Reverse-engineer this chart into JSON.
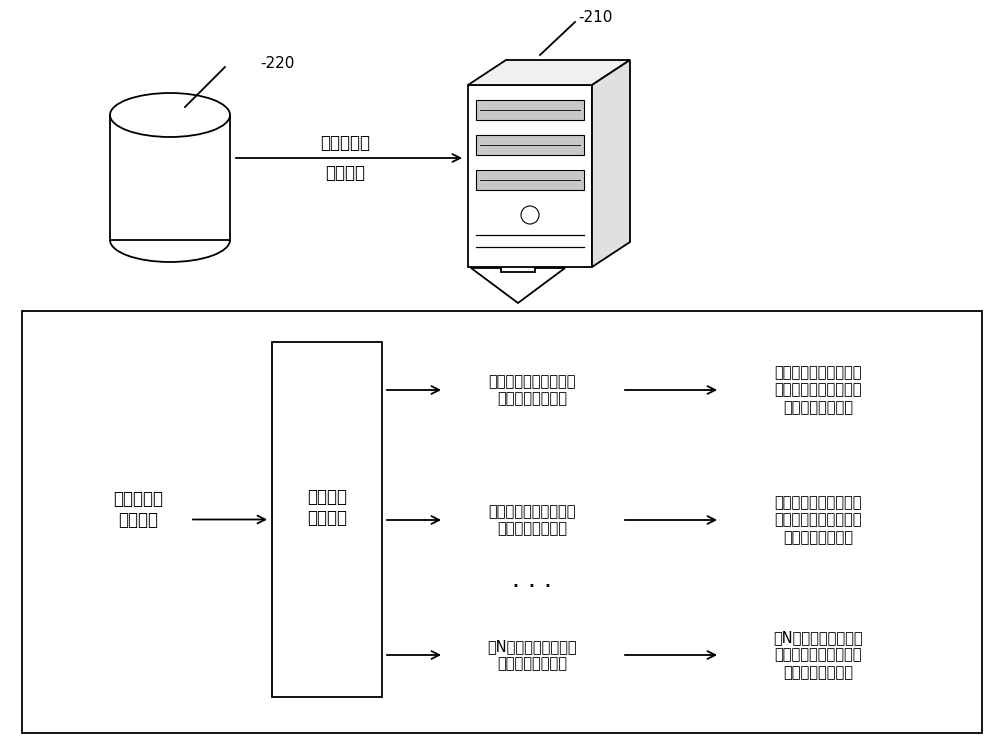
{
  "bg_color": "#ffffff",
  "label_210": "210",
  "label_220": "220",
  "db_label": "目标对象的\n特征数据",
  "model_label": "目标行为\n预测模型",
  "input_label": "目标对象的\n特征数据",
  "arrow_label_top_line1": "目标对象的",
  "arrow_label_top_line2": "特征数据",
  "output1_line1": "第一个时间单元对应的",
  "output1_line2": "目标行为参考概率",
  "output2_line1": "第二个时间单元对应的",
  "output2_line2": "目标行为参考概率",
  "outputN_line1": "第N个时间单元对应的",
  "outputN_line2": "目标行为参考概率",
  "result1_line1": "第一个时间单元对应的",
  "result1_line2": "参考时长内目标对象的",
  "result1_line3": "目标行为产生概率",
  "result2_line1": "第二个时间单元对应的",
  "result2_line2": "参考时长内目标对象的",
  "result2_line3": "目标行为产生概率",
  "resultN_line1": "第N个时间单元对应的",
  "resultN_line2": "参考时长内目标对象的",
  "resultN_line3": "目标行为产生概率",
  "font_size_main": 12,
  "font_size_label": 10.5,
  "font_size_small": 9.5,
  "line_color": "#000000"
}
